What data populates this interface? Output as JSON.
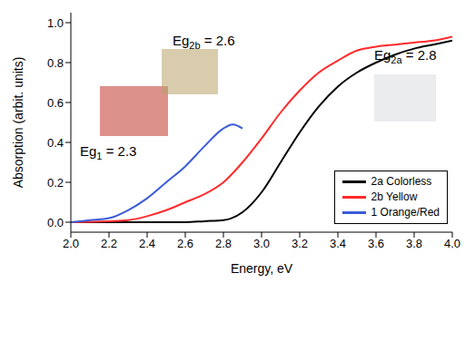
{
  "chart_data": {
    "type": "line",
    "x_label": "Energy, eV",
    "y_label": "Absorption (arbit. units)",
    "xlim": [
      2.0,
      4.0
    ],
    "xticks": [
      {
        "value": 2,
        "label": "2.0"
      },
      2.2,
      2.4,
      2.6,
      2.8,
      {
        "value": 3,
        "label": "3.0"
      },
      3.2,
      3.4,
      3.6,
      3.8,
      {
        "value": 4,
        "label": "4.0"
      }
    ],
    "ylim": [
      -0.05,
      1.05
    ],
    "yticks": [
      {
        "value": 0,
        "label": "0.0"
      },
      0.2,
      0.4,
      0.6,
      0.8,
      {
        "value": 1,
        "label": "1.0"
      }
    ],
    "grid": false,
    "legend": "lower right",
    "series": [
      {
        "name": "2a Colorless",
        "color": "#000000",
        "x": [
          2.0,
          2.2,
          2.4,
          2.6,
          2.7,
          2.8,
          2.9,
          3.0,
          3.1,
          3.2,
          3.3,
          3.4,
          3.5,
          3.6,
          3.7,
          3.8,
          3.9,
          4.0
        ],
        "values": [
          0.0,
          0.0,
          0.0,
          0.0,
          0.005,
          0.01,
          0.05,
          0.15,
          0.3,
          0.45,
          0.58,
          0.68,
          0.75,
          0.8,
          0.84,
          0.87,
          0.89,
          0.91
        ]
      },
      {
        "name": "2b Yellow",
        "color": "#ff2a2a",
        "x": [
          2.0,
          2.2,
          2.3,
          2.4,
          2.5,
          2.6,
          2.7,
          2.8,
          2.9,
          3.0,
          3.1,
          3.2,
          3.3,
          3.4,
          3.5,
          3.6,
          3.7,
          3.8,
          3.9,
          4.0
        ],
        "values": [
          0.0,
          0.005,
          0.01,
          0.03,
          0.06,
          0.1,
          0.14,
          0.2,
          0.3,
          0.42,
          0.55,
          0.66,
          0.75,
          0.81,
          0.86,
          0.88,
          0.89,
          0.9,
          0.91,
          0.93
        ]
      },
      {
        "name": "1 Orange/Red",
        "color": "#3a5bd9",
        "x": [
          2.0,
          2.1,
          2.2,
          2.3,
          2.4,
          2.5,
          2.6,
          2.7,
          2.8,
          2.85,
          2.9
        ],
        "values": [
          0.0,
          0.01,
          0.02,
          0.06,
          0.12,
          0.2,
          0.28,
          0.38,
          0.47,
          0.49,
          0.47
        ]
      }
    ],
    "annotations": [
      {
        "text": "Eg",
        "subscript": "1",
        "suffix": " = 2.3"
      },
      {
        "text": "Eg",
        "subscript": "2b",
        "suffix": " = 2.6"
      },
      {
        "text": "Eg",
        "subscript": "2a",
        "suffix": " = 2.8"
      }
    ]
  }
}
